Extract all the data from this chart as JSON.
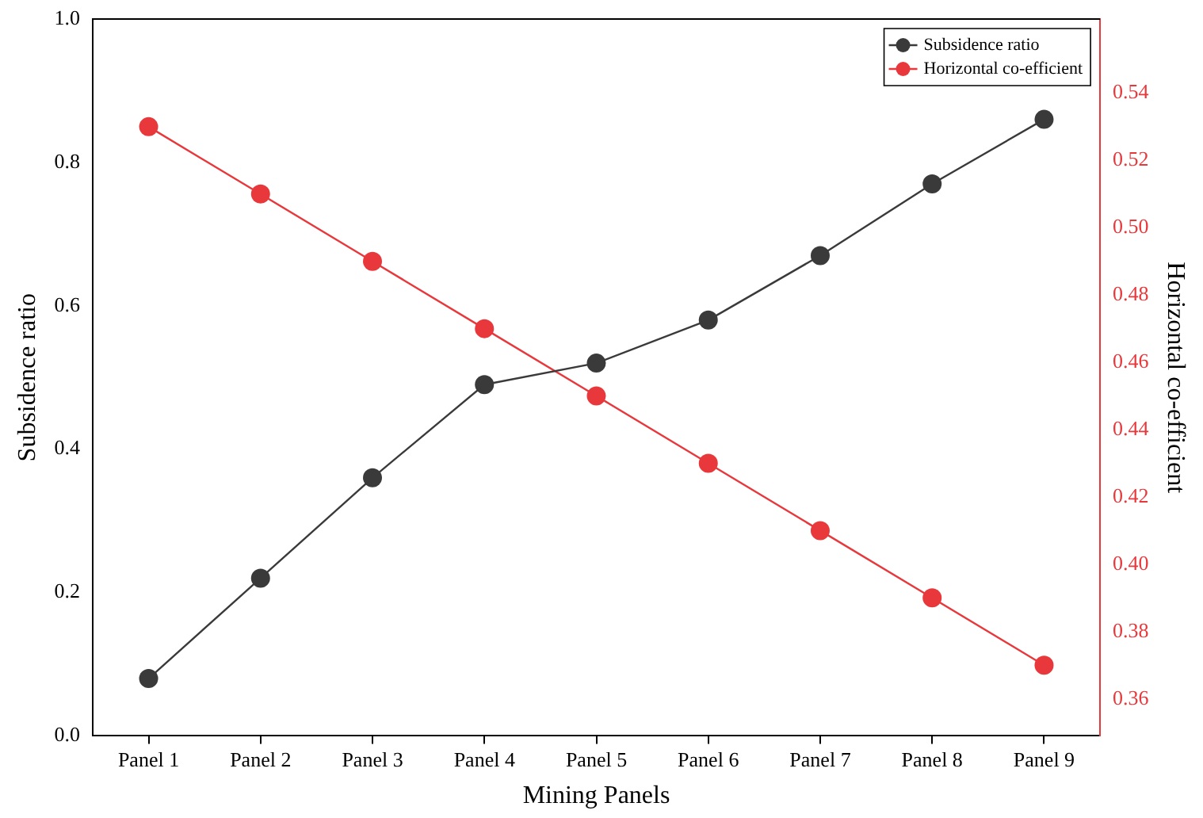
{
  "chart_data": {
    "type": "line",
    "xlabel": "Mining Panels",
    "ylabel": "Subsidence ratio",
    "y2label": "Horizontal co-efficient",
    "categories": [
      "Panel 1",
      "Panel 2",
      "Panel 3",
      "Panel 4",
      "Panel 5",
      "Panel 6",
      "Panel 7",
      "Panel 8",
      "Panel 9"
    ],
    "series": [
      {
        "name": "Subsidence ratio",
        "color": "#3a3a3a",
        "values": [
          0.08,
          0.22,
          0.36,
          0.49,
          0.52,
          0.58,
          0.67,
          0.77,
          0.86
        ]
      },
      {
        "name": "Horizontal co-efficient",
        "color": "#e8383b",
        "axis": "y2",
        "values": [
          0.53,
          0.51,
          0.49,
          0.47,
          0.45,
          0.43,
          0.41,
          0.39,
          0.37
        ]
      }
    ],
    "ylim": [
      0,
      1
    ],
    "yticks": [
      {
        "value": 0,
        "label": "0.0"
      },
      {
        "value": 0.2,
        "label": "0.2"
      },
      {
        "value": 0.4,
        "label": "0.4"
      },
      {
        "value": 0.6,
        "label": "0.6"
      },
      {
        "value": 0.8,
        "label": "0.8"
      },
      {
        "value": 1,
        "label": "1.0"
      }
    ],
    "y2lim": [
      0.349,
      0.562
    ],
    "y2ticks": [
      {
        "value": 0.36,
        "label": "0.36"
      },
      {
        "value": 0.38,
        "label": "0.38"
      },
      {
        "value": 0.4,
        "label": "0.40"
      },
      {
        "value": 0.42,
        "label": "0.42"
      },
      {
        "value": 0.44,
        "label": "0.44"
      },
      {
        "value": 0.46,
        "label": "0.46"
      },
      {
        "value": 0.48,
        "label": "0.48"
      },
      {
        "value": 0.5,
        "label": "0.50"
      },
      {
        "value": 0.52,
        "label": "0.52"
      },
      {
        "value": 0.54,
        "label": "0.54"
      }
    ],
    "grid": false,
    "legend": "top right",
    "marker": "circle",
    "line_style": "solid"
  }
}
